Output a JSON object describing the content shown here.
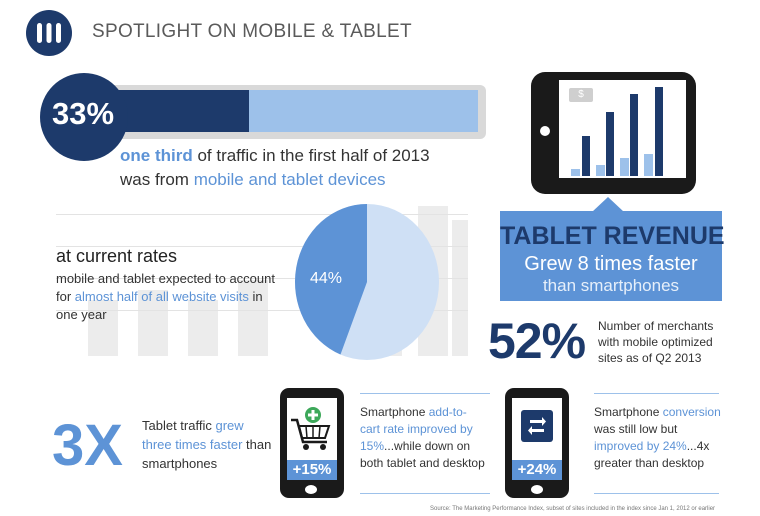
{
  "header": {
    "title": "SPOTLIGHT ON MOBILE & TABLET"
  },
  "stat_33": {
    "percent": "33%",
    "progress_fraction": 0.33,
    "line1_highlight": "one third",
    "line1_rest": " of traffic in the first half of 2013",
    "line2_pre": "was from ",
    "line2_highlight": "mobile and tablet devices"
  },
  "current_rates": {
    "heading": "at current rates",
    "body_pre": "mobile and tablet expected to account for ",
    "body_highlight": "almost half of all website visits",
    "body_post": " in one year",
    "pie_label": "44%",
    "pie_fraction": 0.44
  },
  "tablet_revenue": {
    "money_icon": "$",
    "title": "TABLET REVENUE",
    "line2": "Grew 8 times faster",
    "line3": "than smartphones"
  },
  "stat_52": {
    "percent": "52%",
    "text": "Number of merchants with mobile optimized sites as of Q2 2013"
  },
  "stat_3x": {
    "value": "3X",
    "text_pre": "Tablet traffic ",
    "text_highlight": "grew three times faster",
    "text_post": " than smartphones"
  },
  "phone_cart": {
    "icon": "cart-add-icon",
    "badge": "+15%",
    "caption_pre": "Smartphone ",
    "caption_highlight": "add-to-cart rate improved by 15%",
    "caption_post": "...while down on both tablet and desktop"
  },
  "phone_conversion": {
    "icon": "refresh-icon",
    "badge": "+24%",
    "caption_pre": "Smartphone ",
    "caption_h1": "conversion",
    "caption_mid": " was still low but ",
    "caption_h2": "improved by 24%",
    "caption_post": "...4x greater than desktop"
  },
  "source": "Source: The Marketing Performance Index, subset of sites included in the index since Jan 1, 2012 or earlier",
  "colors": {
    "navy": "#1d3a6b",
    "blue": "#5d93d6",
    "light_blue": "#9dc1ea",
    "pie_light": "#cfe0f5"
  }
}
